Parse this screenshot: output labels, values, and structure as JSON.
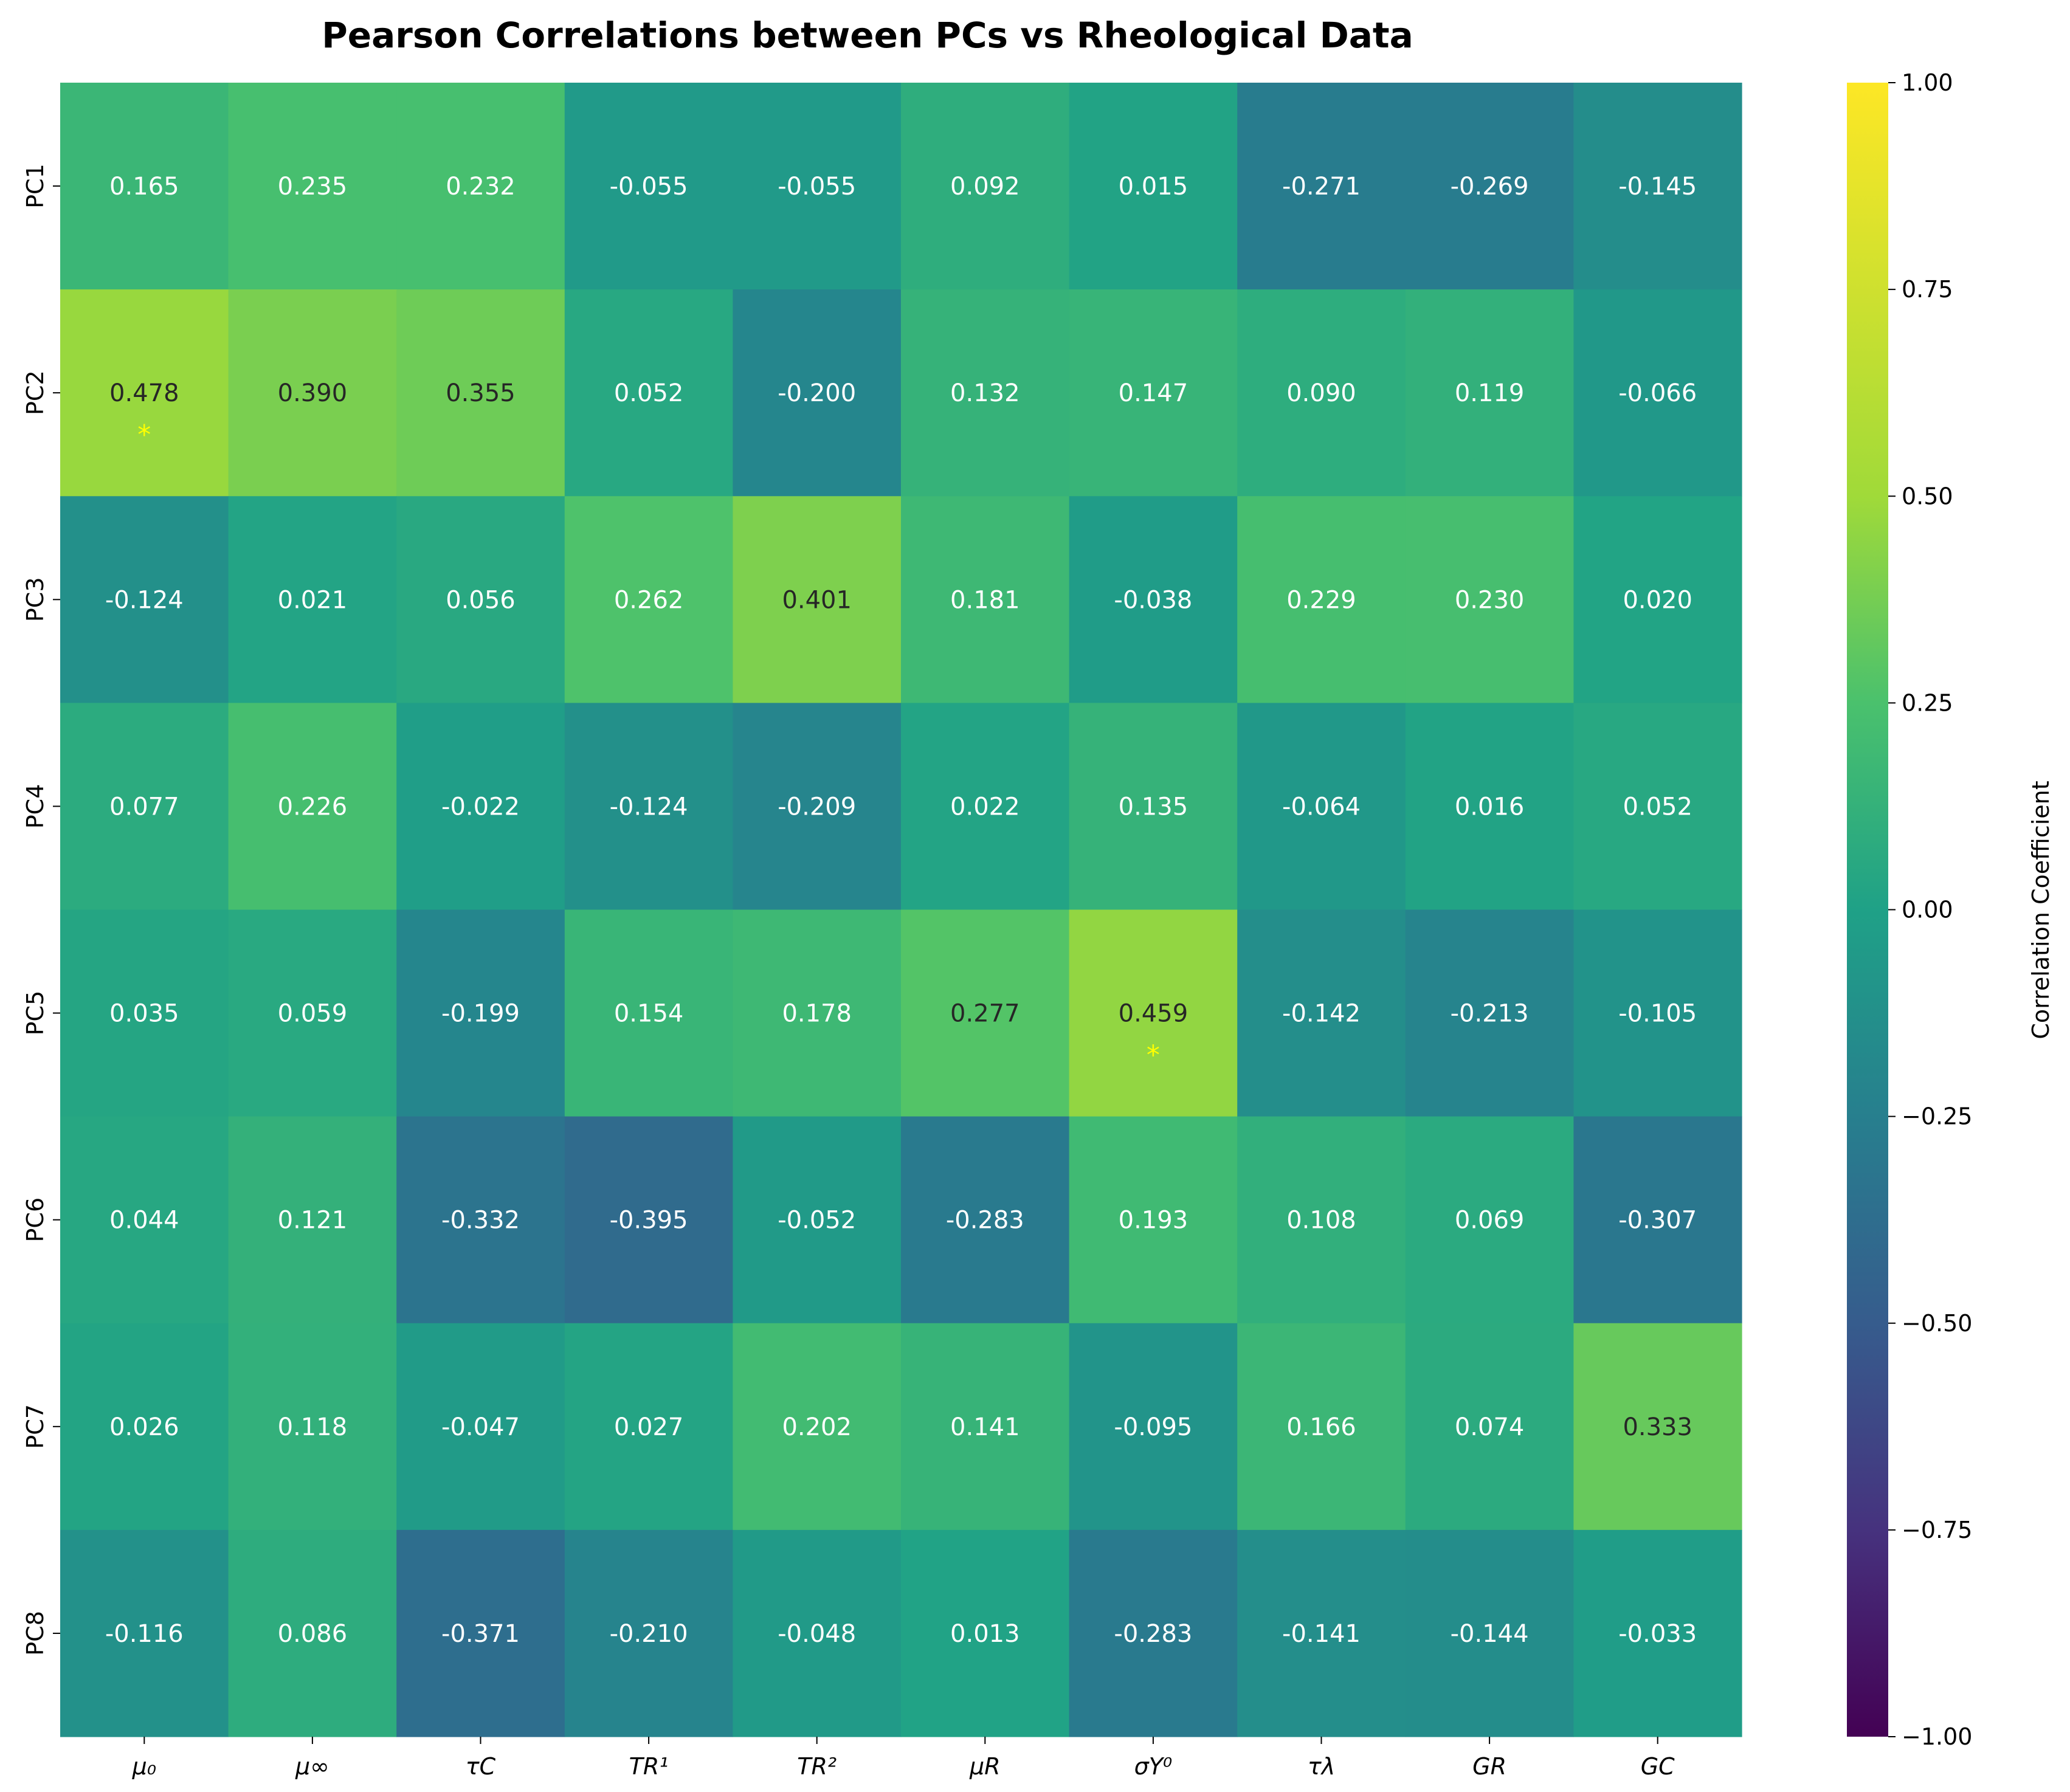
{
  "chart_data": {
    "type": "heatmap",
    "title": "Pearson Correlations between PCs vs Rheological Data",
    "rows": [
      "PC1",
      "PC2",
      "PC3",
      "PC4",
      "PC5",
      "PC6",
      "PC7",
      "PC8"
    ],
    "columns": [
      "μ₀",
      "μ∞",
      "τC",
      "TR¹",
      "TR²",
      "μR",
      "σY⁰",
      "τλ",
      "GR",
      "GC"
    ],
    "values": [
      [
        0.165,
        0.235,
        0.232,
        -0.055,
        -0.055,
        0.092,
        0.015,
        -0.271,
        -0.269,
        -0.145
      ],
      [
        0.478,
        0.39,
        0.355,
        0.052,
        -0.2,
        0.132,
        0.147,
        0.09,
        0.119,
        -0.066
      ],
      [
        -0.124,
        0.021,
        0.056,
        0.262,
        0.401,
        0.181,
        -0.038,
        0.229,
        0.23,
        0.02
      ],
      [
        0.077,
        0.226,
        -0.022,
        -0.124,
        -0.209,
        0.022,
        0.135,
        -0.064,
        0.016,
        0.052
      ],
      [
        0.035,
        0.059,
        -0.199,
        0.154,
        0.178,
        0.277,
        0.459,
        -0.142,
        -0.213,
        -0.105
      ],
      [
        0.044,
        0.121,
        -0.332,
        -0.395,
        -0.052,
        -0.283,
        0.193,
        0.108,
        0.069,
        -0.307
      ],
      [
        0.026,
        0.118,
        -0.047,
        0.027,
        0.202,
        0.141,
        -0.095,
        0.166,
        0.074,
        0.333
      ],
      [
        -0.116,
        0.086,
        -0.371,
        -0.21,
        -0.048,
        0.013,
        -0.283,
        -0.141,
        -0.144,
        -0.033
      ]
    ],
    "cell_labels": [
      [
        "0.165",
        "0.235",
        "0.232",
        "-0.055",
        "-0.055",
        "0.092",
        "0.015",
        "-0.271",
        "-0.269",
        "-0.145"
      ],
      [
        "0.478",
        "0.390",
        "0.355",
        "0.052",
        "-0.200",
        "0.132",
        "0.147",
        "0.090",
        "0.119",
        "-0.066"
      ],
      [
        "-0.124",
        "0.021",
        "0.056",
        "0.262",
        "0.401",
        "0.181",
        "-0.038",
        "0.229",
        "0.230",
        "0.020"
      ],
      [
        "0.077",
        "0.226",
        "-0.022",
        "-0.124",
        "-0.209",
        "0.022",
        "0.135",
        "-0.064",
        "0.016",
        "0.052"
      ],
      [
        "0.035",
        "0.059",
        "-0.199",
        "0.154",
        "0.178",
        "0.277",
        "0.459",
        "-0.142",
        "-0.213",
        "-0.105"
      ],
      [
        "0.044",
        "0.121",
        "-0.332",
        "-0.395",
        "-0.052",
        "-0.283",
        "0.193",
        "0.108",
        "0.069",
        "-0.307"
      ],
      [
        "0.026",
        "0.118",
        "-0.047",
        "0.027",
        "0.202",
        "0.141",
        "-0.095",
        "0.166",
        "0.074",
        "0.333"
      ],
      [
        "-0.116",
        "0.086",
        "-0.371",
        "-0.210",
        "-0.048",
        "0.013",
        "-0.283",
        "-0.141",
        "-0.144",
        "-0.033"
      ]
    ],
    "significance_marker": "*",
    "significant_cells": [
      [
        1,
        0
      ],
      [
        4,
        6
      ]
    ],
    "colormap": "viridis",
    "vmin": -1.0,
    "vmax": 1.0,
    "colorbar": {
      "label": "Correlation Coefficient",
      "ticks": [
        "1.00",
        "0.75",
        "0.50",
        "0.25",
        "0.00",
        "−0.25",
        "−0.50",
        "−0.75",
        "−1.00"
      ],
      "tick_values": [
        1.0,
        0.75,
        0.5,
        0.25,
        0.0,
        -0.25,
        -0.5,
        -0.75,
        -1.0
      ],
      "placement": "right"
    },
    "grid": false
  }
}
